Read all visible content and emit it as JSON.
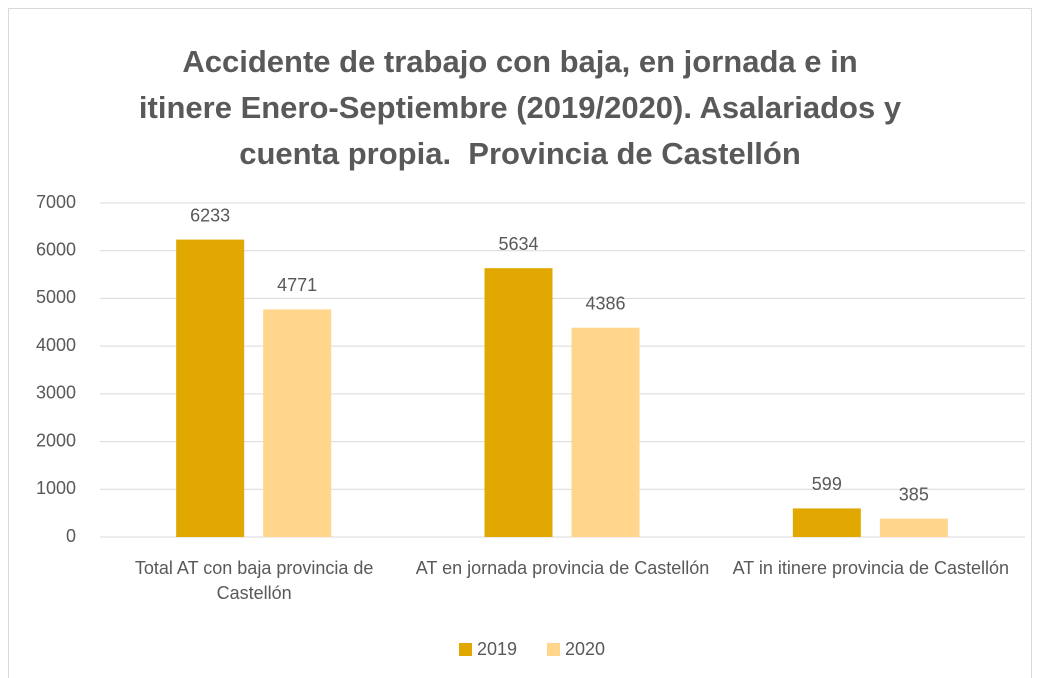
{
  "chart_data": {
    "type": "bar",
    "title": [
      "Accidente de trabajo con baja, en jornada e in",
      "itinere Enero-Septiembre (2019/2020). Asalariados y",
      "cuenta propia.  Provincia de Castellón"
    ],
    "categories": [
      "Total AT con baja provincia de Castellón",
      "AT en jornada provincia de Castellón",
      "AT in itinere provincia de Castellón"
    ],
    "series": [
      {
        "name": "2019",
        "color": "#e0a800",
        "values": [
          6233,
          5634,
          599
        ]
      },
      {
        "name": "2020",
        "color": "#ffd68c",
        "values": [
          4771,
          4386,
          385
        ]
      }
    ],
    "ylim": [
      0,
      7000
    ],
    "yticks": [
      0,
      1000,
      2000,
      3000,
      4000,
      5000,
      6000,
      7000
    ],
    "grid": true,
    "legend": "bottom"
  }
}
